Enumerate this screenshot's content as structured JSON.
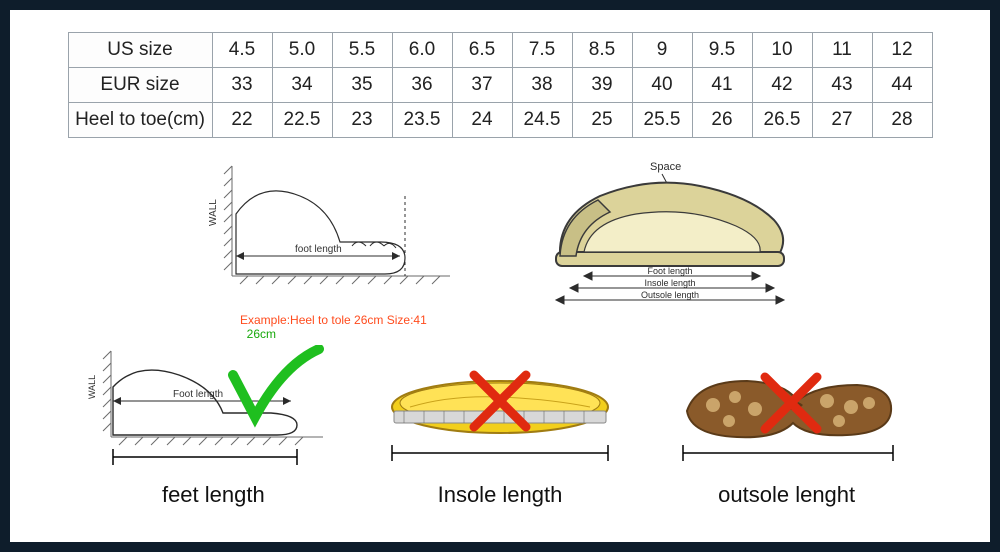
{
  "frame": {
    "outer_bg": "#0e1d2b",
    "inner_bg": "#ffffff"
  },
  "table": {
    "border_color": "#9aa3ab",
    "header_col_width": 144,
    "value_col_width": 60,
    "rows": [
      {
        "label": "US size",
        "values": [
          "4.5",
          "5.0",
          "5.5",
          "6.0",
          "6.5",
          "7.5",
          "8.5",
          "9",
          "9.5",
          "10",
          "11",
          "12"
        ]
      },
      {
        "label": "EUR size",
        "values": [
          "33",
          "34",
          "35",
          "36",
          "37",
          "38",
          "39",
          "40",
          "41",
          "42",
          "43",
          "44"
        ]
      },
      {
        "label": "Heel to toe(cm)",
        "values": [
          "22",
          "22.5",
          "23",
          "23.5",
          "24",
          "24.5",
          "25",
          "25.5",
          "26",
          "26.5",
          "27",
          "28"
        ]
      }
    ]
  },
  "diagram_foot_trace": {
    "wall_label": "WALL",
    "arrow_label": "foot length",
    "example_prefix": "Example:Heel to tole 26cm Size:",
    "example_size": "41",
    "example_cm": "26cm",
    "colors": {
      "hatch": "#6a6a6a",
      "foot_line": "#2c2c2c",
      "arrow": "#2c2c2c",
      "example": "#ff4b1d",
      "cm": "#18a80c"
    }
  },
  "diagram_shoe_section": {
    "space_label": "Space",
    "lines": [
      "Foot length",
      "Insole length",
      "Outsole length"
    ],
    "colors": {
      "shoe_fill": "#dcd39a",
      "shoe_line": "#3a3a3a",
      "label": "#2c2c2c"
    }
  },
  "diagram_feet_correct": {
    "caption": "feet length",
    "wall_label": "WALL",
    "foot_label": "Foot length",
    "mark": "check",
    "colors": {
      "mark": "#1fbf1f",
      "hatch": "#6a6a6a",
      "foot_fill": "#ffffff",
      "foot_line": "#2a2a2a"
    }
  },
  "diagram_insole_wrong": {
    "caption": "Insole length",
    "mark": "cross",
    "colors": {
      "mark": "#e02a10",
      "insole_fill": "#f2cf1c",
      "insole_edge": "#a07c12",
      "tape": "#d8d8d8"
    }
  },
  "diagram_outsole_wrong": {
    "caption": "outsole lenght",
    "mark": "cross",
    "colors": {
      "mark": "#e02a10",
      "sole_fill": "#8a5a2a",
      "sole_dark": "#5a3a18",
      "tread": "#caa46a"
    }
  }
}
